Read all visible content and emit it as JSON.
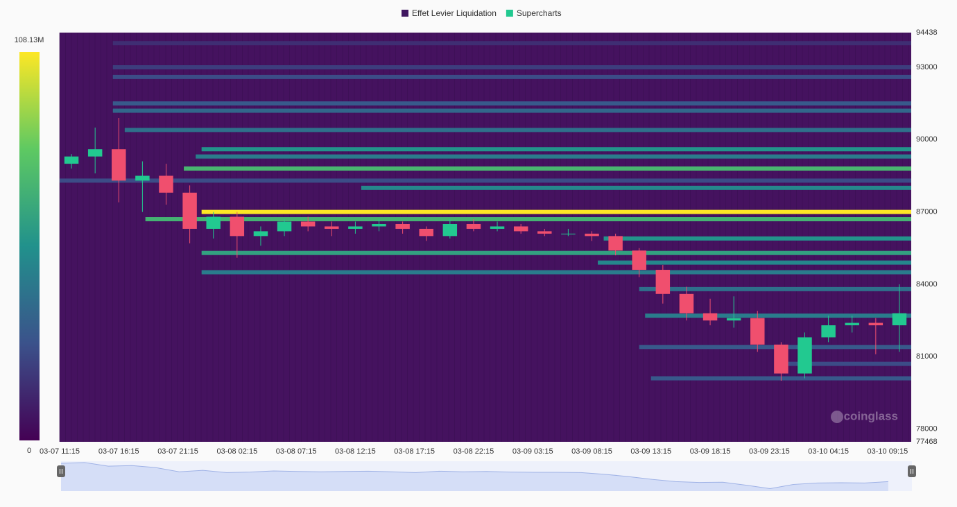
{
  "chart_data": {
    "type": "liquidation-heatmap",
    "legend": [
      {
        "name": "Effet Levier Liquidation",
        "color": "#3f1660"
      },
      {
        "name": "Supercharts",
        "color": "#22c990"
      }
    ],
    "up_color": "#22c990",
    "down_color": "#f04f6e",
    "watermark": "coinglass",
    "clim": [
      0,
      108.13
    ],
    "cticks": [
      0,
      {
        "value": 108.13,
        "label": "108.13M"
      }
    ],
    "ylim": [
      77468,
      94438
    ],
    "yticks": [
      77468,
      78000,
      81000,
      84000,
      87000,
      90000,
      93000,
      94438
    ],
    "xlim": [
      "03-07 11:15",
      "03-10 11:15"
    ],
    "xticks": [
      "03-07 11:15",
      "03-07 16:15",
      "03-07 21:15",
      "03-08 02:15",
      "03-08 07:15",
      "03-08 12:15",
      "03-08 17:15",
      "03-08 22:15",
      "03-09 03:15",
      "03-09 08:15",
      "03-09 13:15",
      "03-09 18:15",
      "03-09 23:15",
      "03-10 04:15",
      "03-10 09:15"
    ],
    "x": [
      "03-07 11:15",
      "03-07 13:15",
      "03-07 15:15",
      "03-07 17:15",
      "03-07 19:15",
      "03-07 21:15",
      "03-07 23:15",
      "03-08 01:15",
      "03-08 03:15",
      "03-08 05:15",
      "03-08 07:15",
      "03-08 09:15",
      "03-08 11:15",
      "03-08 13:15",
      "03-08 15:15",
      "03-08 17:15",
      "03-08 19:15",
      "03-08 21:15",
      "03-08 23:15",
      "03-09 01:15",
      "03-09 03:15",
      "03-09 05:15",
      "03-09 07:15",
      "03-09 09:15",
      "03-09 11:15",
      "03-09 13:15",
      "03-09 15:15",
      "03-09 17:15",
      "03-09 19:15",
      "03-09 21:15",
      "03-09 23:15",
      "03-10 01:15",
      "03-10 03:15",
      "03-10 05:15",
      "03-10 07:15",
      "03-10 09:15"
    ],
    "open": [
      89000,
      89300,
      89600,
      88300,
      88500,
      87800,
      86300,
      86800,
      86000,
      86200,
      86600,
      86400,
      86300,
      86400,
      86500,
      86300,
      86000,
      86500,
      86300,
      86400,
      86200,
      86100,
      86100,
      86000,
      85400,
      84600,
      83600,
      82800,
      82500,
      82600,
      81500,
      80300,
      81800,
      82300,
      82400,
      82300
    ],
    "high": [
      89400,
      90500,
      90900,
      89100,
      89000,
      88100,
      87000,
      87000,
      86400,
      86700,
      86800,
      86600,
      86600,
      86700,
      86600,
      86400,
      86700,
      86700,
      86600,
      86500,
      86300,
      86300,
      86200,
      86100,
      85500,
      84800,
      83900,
      83400,
      83500,
      82900,
      81600,
      82000,
      82700,
      82700,
      82600,
      84000
    ],
    "low": [
      88800,
      88600,
      87400,
      87000,
      87300,
      85700,
      85900,
      85100,
      85600,
      86000,
      86200,
      86000,
      86100,
      86200,
      86100,
      85800,
      85900,
      86200,
      86200,
      86100,
      86000,
      86000,
      85800,
      85200,
      84300,
      83200,
      82500,
      82300,
      82200,
      81200,
      80000,
      80100,
      81600,
      82000,
      81100,
      81200
    ],
    "close": [
      89300,
      89600,
      88300,
      88500,
      87800,
      86300,
      86800,
      86000,
      86200,
      86600,
      86400,
      86300,
      86400,
      86500,
      86300,
      86000,
      86500,
      86300,
      86400,
      86200,
      86100,
      86100,
      86000,
      85400,
      84600,
      83600,
      82800,
      82500,
      82600,
      81500,
      80300,
      81800,
      82300,
      82400,
      82300,
      82800
    ],
    "heatmap": [
      {
        "price": 94000,
        "start": "03-07 15:45",
        "value": 15
      },
      {
        "price": 93000,
        "start": "03-07 15:45",
        "value": 20
      },
      {
        "price": 92600,
        "start": "03-07 15:45",
        "value": 25
      },
      {
        "price": 91500,
        "start": "03-07 15:45",
        "value": 30
      },
      {
        "price": 91200,
        "start": "03-07 15:45",
        "value": 36
      },
      {
        "price": 90400,
        "start": "03-07 16:45",
        "value": 40
      },
      {
        "price": 89600,
        "start": "03-07 23:15",
        "value": 55
      },
      {
        "price": 89300,
        "start": "03-07 22:45",
        "value": 45
      },
      {
        "price": 88800,
        "start": "03-07 21:45",
        "value": 72
      },
      {
        "price": 88300,
        "start": "03-07 11:15",
        "value": 25
      },
      {
        "price": 88000,
        "start": "03-08 12:45",
        "value": 50
      },
      {
        "price": 87000,
        "start": "03-07 23:15",
        "value": 108.13
      },
      {
        "price": 86700,
        "start": "03-07 18:30",
        "value": 70
      },
      {
        "price": 85900,
        "start": "03-09 09:15",
        "value": 55
      },
      {
        "price": 85300,
        "start": "03-07 23:15",
        "value": 62
      },
      {
        "price": 84900,
        "start": "03-09 08:45",
        "value": 50
      },
      {
        "price": 84500,
        "start": "03-07 23:15",
        "value": 45
      },
      {
        "price": 83800,
        "start": "03-09 12:15",
        "value": 40
      },
      {
        "price": 82700,
        "start": "03-09 12:45",
        "value": 45
      },
      {
        "price": 81400,
        "start": "03-09 12:15",
        "value": 30
      },
      {
        "price": 80700,
        "start": "03-10 00:30",
        "value": 25
      },
      {
        "price": 80100,
        "start": "03-09 13:15",
        "value": 30
      }
    ]
  }
}
